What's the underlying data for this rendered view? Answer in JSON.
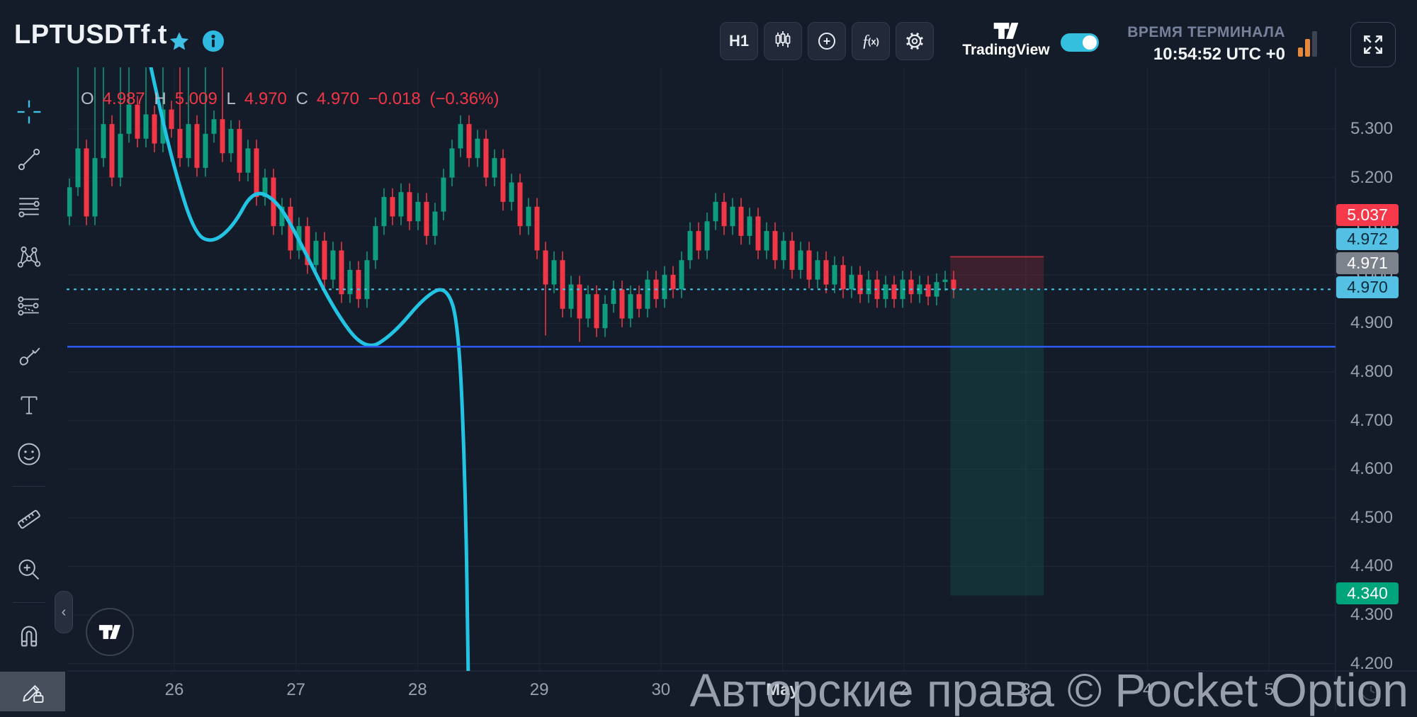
{
  "header": {
    "symbol": "LPTUSDTf.t",
    "timeframe_button": "H1",
    "tradingview_label": "TradingView",
    "terminal_time_label": "ВРЕМЯ ТЕРМИНАЛА",
    "terminal_time_value": "10:54:52 UTC +0"
  },
  "legend": {
    "o_label": "O",
    "o": "4.987",
    "h_label": "H",
    "h": "5.009",
    "l_label": "L",
    "l": "4.970",
    "c_label": "C",
    "c": "4.970",
    "change": "−0.018",
    "change_pct": "(−0.36%)",
    "value_color": "#f23645"
  },
  "watermark": "Авторские права © Pocket Option",
  "price_scale": {
    "ticks": [
      "5.300",
      "5.200",
      "5.100",
      "5.000",
      "4.900",
      "4.800",
      "4.700",
      "4.600",
      "4.500",
      "4.400",
      "4.300",
      "4.200"
    ],
    "badges": [
      {
        "value": "5.037",
        "bg": "#f5394a",
        "fg": "#ffffff"
      },
      {
        "value": "4.972",
        "bg": "#54c0e4",
        "fg": "#0c2a3a"
      },
      {
        "value": "4.971",
        "bg": "#7d838d",
        "fg": "#ffffff"
      },
      {
        "value": "4.970",
        "bg": "#54c0e4",
        "fg": "#0c2a3a"
      },
      {
        "value": "4.340",
        "bg": "#00a47b",
        "fg": "#ffffff"
      }
    ]
  },
  "time_scale": {
    "labels": [
      "26",
      "27",
      "28",
      "29",
      "30",
      "May",
      "2",
      "3",
      "4",
      "5"
    ]
  },
  "chart_data": {
    "type": "candlestick",
    "symbol": "LPTUSDTf.t",
    "timeframe": "H1",
    "visible_price_range": [
      4.185,
      5.427
    ],
    "current": {
      "open": 4.987,
      "high": 5.009,
      "low": 4.97,
      "close": 4.97,
      "change": -0.018,
      "change_pct": -0.36
    },
    "up_color": "#0f9d80",
    "down_color": "#f23645",
    "grid_color": "#1f2735",
    "candles": {
      "first_open": 5.12,
      "default_wick": 0.018,
      "closes": [
        5.18,
        5.26,
        5.12,
        5.24,
        5.31,
        5.2,
        5.29,
        5.35,
        5.28,
        5.33,
        5.27,
        5.34,
        5.3,
        5.24,
        5.31,
        5.22,
        5.29,
        5.32,
        5.25,
        5.3,
        5.21,
        5.26,
        5.16,
        5.2,
        5.1,
        5.14,
        5.05,
        5.1,
        5.02,
        5.07,
        4.99,
        5.05,
        4.96,
        5.01,
        4.95,
        5.03,
        5.1,
        5.16,
        5.12,
        5.17,
        5.11,
        5.15,
        5.08,
        5.13,
        5.2,
        5.26,
        5.31,
        5.24,
        5.28,
        5.2,
        5.24,
        5.15,
        5.19,
        5.1,
        5.14,
        5.05,
        4.98,
        5.03,
        4.93,
        4.98,
        4.91,
        4.96,
        4.89,
        4.94,
        4.97,
        4.91,
        4.96,
        4.93,
        4.99,
        4.95,
        5.0,
        4.97,
        5.03,
        5.09,
        5.05,
        5.11,
        5.15,
        5.1,
        5.14,
        5.08,
        5.12,
        5.05,
        5.09,
        5.03,
        5.07,
        5.01,
        5.05,
        4.99,
        5.03,
        4.98,
        5.02,
        4.97,
        5.0,
        4.96,
        4.99,
        4.95,
        4.98,
        4.95,
        4.99,
        4.96,
        4.98,
        4.955,
        4.985,
        4.99,
        4.97
      ],
      "wick_overrides": {
        "1": [
          5.45,
          null
        ],
        "3": [
          5.47,
          null
        ],
        "4": [
          5.44,
          null
        ],
        "6": [
          5.46,
          null
        ],
        "7": [
          5.48,
          null
        ],
        "9": [
          5.45,
          null
        ],
        "11": [
          5.47,
          null
        ],
        "13": [
          5.44,
          null
        ],
        "14": [
          5.46,
          null
        ],
        "16": [
          5.45,
          null
        ],
        "18": [
          5.44,
          null
        ],
        "56": [
          null,
          4.875
        ],
        "60": [
          null,
          4.862
        ],
        "62": [
          null,
          4.872
        ]
      }
    },
    "indicator_line": {
      "color": "#23c3e3",
      "points": [
        [
          9.3,
          5.45
        ],
        [
          10.4,
          5.36
        ],
        [
          12.3,
          5.22
        ],
        [
          14.7,
          5.085
        ],
        [
          16.8,
          5.065
        ],
        [
          19.3,
          5.1
        ],
        [
          21.6,
          5.175
        ],
        [
          24.3,
          5.155
        ],
        [
          26.8,
          5.08
        ],
        [
          31.0,
          4.93
        ],
        [
          34.8,
          4.842
        ],
        [
          38.1,
          4.878
        ],
        [
          41.8,
          4.955
        ],
        [
          44.3,
          4.978
        ],
        [
          45.8,
          4.9
        ],
        [
          46.6,
          4.55
        ],
        [
          46.9,
          4.185
        ]
      ]
    },
    "horizontal_line": {
      "price": 4.852,
      "color": "#2b5cf5"
    },
    "current_price_line": {
      "price": 4.97,
      "color": "#45c3e8",
      "style": "dotted"
    },
    "position_tool": {
      "type": "short",
      "entry": 4.97,
      "stop": 5.037,
      "target": 4.34,
      "start_index": 103.6,
      "end_index": 114.6,
      "risk_fill": "rgba(242,54,69,0.18)",
      "reward_fill": "rgba(17,157,127,0.17)",
      "stop_line_color": "rgba(242,54,69,0.65)"
    }
  }
}
